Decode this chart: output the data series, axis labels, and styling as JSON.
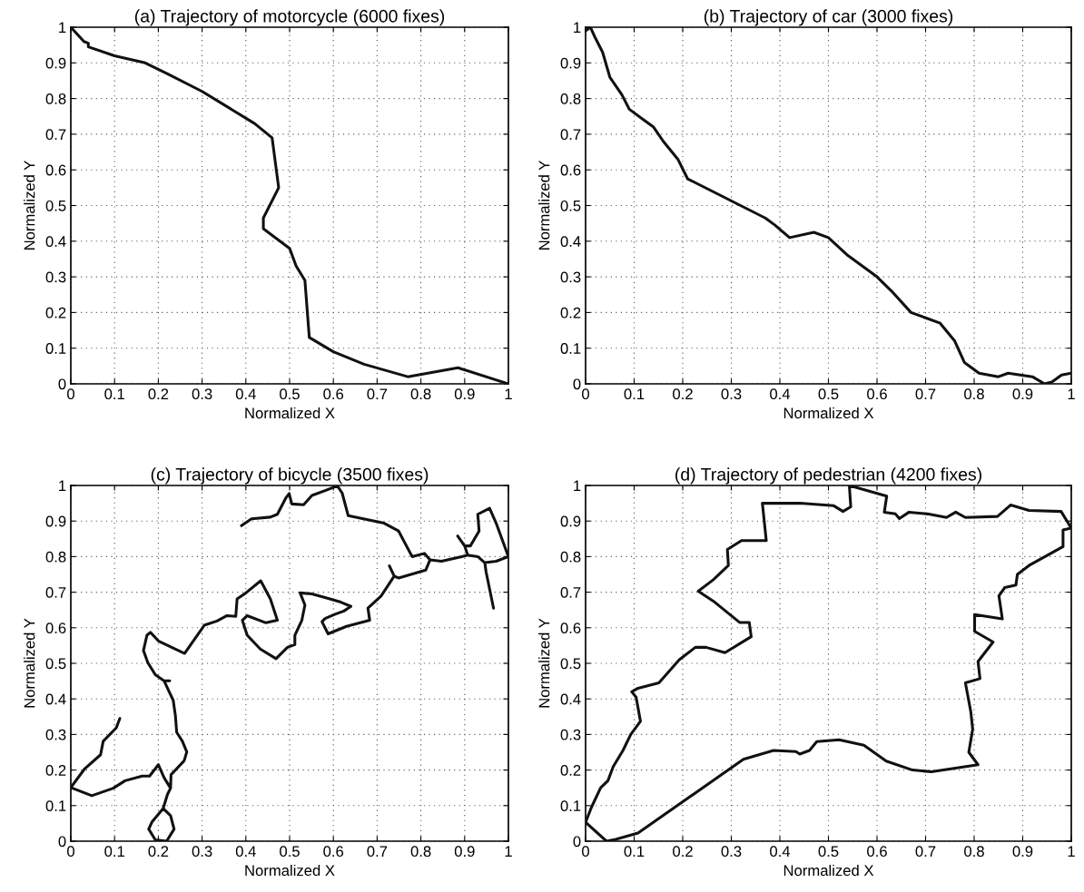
{
  "chart_data": [
    {
      "type": "line",
      "title": "(a) Trajectory of motorcycle (6000 fixes)",
      "xlabel": "Normalized X",
      "ylabel": "Normalized Y",
      "xlim": [
        0,
        1
      ],
      "ylim": [
        0,
        1
      ],
      "xticks": [
        0,
        0.1,
        0.2,
        0.3,
        0.4,
        0.5,
        0.6,
        0.7,
        0.8,
        0.9,
        1
      ],
      "yticks": [
        0,
        0.1,
        0.2,
        0.3,
        0.4,
        0.5,
        0.6,
        0.7,
        0.8,
        0.9,
        1
      ],
      "grid": true,
      "series": [
        {
          "color": "#111111",
          "x": [
            0,
            0.03,
            0.04,
            0.04,
            0.1,
            0.17,
            0.22,
            0.3,
            0.42,
            0.46,
            0.475,
            0.44,
            0.44,
            0.5,
            0.515,
            0.535,
            0.545,
            0.6,
            0.67,
            0.77,
            0.885,
            1
          ],
          "values": [
            1,
            0.96,
            0.955,
            0.945,
            0.92,
            0.9,
            0.87,
            0.82,
            0.73,
            0.69,
            0.55,
            0.465,
            0.435,
            0.38,
            0.33,
            0.29,
            0.13,
            0.09,
            0.055,
            0.02,
            0.045,
            0
          ]
        }
      ]
    },
    {
      "type": "line",
      "title": "(b) Trajectory of car (3000 fixes)",
      "xlabel": "Normalized X",
      "ylabel": "Normalized Y",
      "xlim": [
        0,
        1
      ],
      "ylim": [
        0,
        1
      ],
      "xticks": [
        0,
        0.1,
        0.2,
        0.3,
        0.4,
        0.5,
        0.6,
        0.7,
        0.8,
        0.9,
        1
      ],
      "yticks": [
        0,
        0.1,
        0.2,
        0.3,
        0.4,
        0.5,
        0.6,
        0.7,
        0.8,
        0.9,
        1
      ],
      "grid": true,
      "series": [
        {
          "color": "#111111",
          "x": [
            0,
            0.01,
            0.02,
            0.035,
            0.05,
            0.075,
            0.09,
            0.12,
            0.14,
            0.16,
            0.19,
            0.21,
            0.37,
            0.39,
            0.42,
            0.47,
            0.5,
            0.54,
            0.6,
            0.63,
            0.67,
            0.7,
            0.73,
            0.76,
            0.78,
            0.81,
            0.85,
            0.87,
            0.92,
            0.945,
            0.96,
            0.98,
            1
          ],
          "values": [
            0.99,
            1,
            0.97,
            0.93,
            0.86,
            0.81,
            0.77,
            0.74,
            0.72,
            0.68,
            0.63,
            0.575,
            0.465,
            0.445,
            0.41,
            0.425,
            0.41,
            0.36,
            0.3,
            0.26,
            0.2,
            0.185,
            0.17,
            0.12,
            0.06,
            0.03,
            0.02,
            0.03,
            0.02,
            0,
            0.005,
            0.025,
            0.03
          ]
        }
      ]
    },
    {
      "type": "line",
      "title": "(c) Trajectory of bicycle (3500 fixes)",
      "xlabel": "Normalized X",
      "ylabel": "Normalized Y",
      "xlim": [
        0,
        1
      ],
      "ylim": [
        0,
        1
      ],
      "xticks": [
        0,
        0.1,
        0.2,
        0.3,
        0.4,
        0.5,
        0.6,
        0.7,
        0.8,
        0.9,
        1
      ],
      "yticks": [
        0,
        0.1,
        0.2,
        0.3,
        0.4,
        0.5,
        0.6,
        0.7,
        0.8,
        0.9,
        1
      ],
      "grid": true,
      "series": [
        {
          "color": "#111111",
          "x": [
            0.112,
            0.104,
            0.074,
            0.068,
            0.032,
            0,
            0.048,
            0.097,
            0.124,
            0.163,
            0.18,
            0.2,
            0.213,
            0.228,
            0.221,
            0.211,
            0.186,
            0.178,
            0.193,
            0.219,
            0.236,
            0.228,
            0.211,
            null,
            0.228,
            0.229,
            0.259,
            0.265,
            0.255,
            0.242,
            0.239,
            0.234,
            0.213,
            0.226,
            null,
            0.213,
            0.193,
            0.176,
            0.166,
            0.174,
            0.182,
            0.201,
            0.26,
            0.305,
            0.334,
            0.357,
            0.377,
            0.38,
            0.4,
            0.434,
            0.456,
            0.472,
            0.446,
            0.403,
            0.392,
            0.403,
            0.433,
            0.469,
            0.495,
            0.512,
            0.512,
            0.528,
            0.535,
            0.524,
            0.551,
            0.581,
            0.617,
            0.64,
            0.624,
            0.604,
            0.581,
            0.574,
            0.588,
            0.63,
            0.683,
            0.679,
            0.709,
            0.739,
            0.728,
            null,
            0.739,
            0.749,
            0.811,
            0.821,
            0.808,
            0.78,
            0.749,
            0.716,
            0.634,
            0.62,
            0.609,
            0.584,
            0.551,
            0.532,
            0.505,
            0.499,
            0.492,
            0.472,
            0.456,
            0.413,
            0.39,
            null,
            0.821,
            0.847,
            0.893,
            0.907,
            0.93,
            0.946,
            0.972,
            1,
            null,
            0.907,
            0.9,
            0.884,
            null,
            0.9,
            0.913,
            0.933,
            0.93,
            0.957,
            0.972,
            1,
            null,
            0.946,
            0.949,
            0.966
          ],
          "values": [
            0.345,
            0.319,
            0.281,
            0.243,
            0.204,
            0.151,
            0.128,
            0.149,
            0.17,
            0.183,
            0.183,
            0.215,
            0.179,
            0.149,
            0.132,
            0.092,
            0.055,
            0.034,
            0.004,
            0,
            0.034,
            0.072,
            0.092,
            null,
            0.149,
            0.187,
            0.226,
            0.251,
            0.281,
            0.306,
            0.353,
            0.396,
            0.451,
            0.451,
            null,
            0.451,
            0.468,
            0.502,
            0.536,
            0.579,
            0.587,
            0.562,
            0.528,
            0.607,
            0.619,
            0.634,
            0.632,
            0.681,
            0.698,
            0.732,
            0.681,
            0.621,
            0.614,
            0.634,
            0.621,
            0.579,
            0.54,
            0.513,
            0.545,
            0.553,
            0.579,
            0.621,
            0.664,
            0.698,
            0.695,
            0.685,
            0.672,
            0.66,
            0.647,
            0.638,
            0.626,
            0.617,
            0.583,
            0.604,
            0.621,
            0.655,
            0.689,
            0.745,
            0.774,
            null,
            0.745,
            0.74,
            0.762,
            0.791,
            0.809,
            0.8,
            0.872,
            0.894,
            0.915,
            0.979,
            0.999,
            0.987,
            0.972,
            0.946,
            0.948,
            0.977,
            0.966,
            0.919,
            0.911,
            0.906,
            0.887,
            null,
            0.791,
            0.787,
            0.8,
            0.804,
            0.8,
            0.783,
            0.787,
            0.8,
            null,
            0.804,
            0.83,
            0.858,
            null,
            0.83,
            0.83,
            0.872,
            0.919,
            0.936,
            0.894,
            0.8,
            null,
            0.783,
            0.757,
            0.655
          ]
        }
      ]
    },
    {
      "type": "line",
      "title": "(d) Trajectory of pedestrian (4200 fixes)",
      "xlabel": "Normalized X",
      "ylabel": "Normalized Y",
      "xlim": [
        0,
        1
      ],
      "ylim": [
        0,
        1
      ],
      "xticks": [
        0,
        0.1,
        0.2,
        0.3,
        0.4,
        0.5,
        0.6,
        0.7,
        0.8,
        0.9,
        1
      ],
      "yticks": [
        0,
        0.1,
        0.2,
        0.3,
        0.4,
        0.5,
        0.6,
        0.7,
        0.8,
        0.9,
        1
      ],
      "grid": true,
      "series": [
        {
          "color": "#111111",
          "x": [
            0,
            0.012,
            0.031,
            0.046,
            0.057,
            0.077,
            0.093,
            0.113,
            0.104,
            0.095,
            0.108,
            0.151,
            0.193,
            0.226,
            0.248,
            0.287,
            0.341,
            0.337,
            0.317,
            0.263,
            0.232,
            0.263,
            0.294,
            0.292,
            0.321,
            0.372,
            0.364,
            0.441,
            0.511,
            0.53,
            0.546,
            0.543,
            0.62,
            0.615,
            0.638,
            0.646,
            0.666,
            0.704,
            0.743,
            0.762,
            0.782,
            0.848,
            0.875,
            0.913,
            0.979,
            1,
            0.983,
            0.983,
            0.913,
            0.889,
            0.886,
            0.863,
            0.851,
            0.858,
            0.801,
            0.801,
            0.839,
            0.808,
            0.812,
            0.782,
            0.793,
            0.797,
            0.789,
            0.808,
            0.712,
            0.673,
            0.619,
            0.573,
            0.522,
            0.476,
            0.461,
            0.441,
            0.433,
            0.387,
            0.325,
            0.108,
            0.062,
            0.043
          ],
          "values": [
            0.053,
            0.095,
            0.15,
            0.17,
            0.21,
            0.255,
            0.3,
            0.337,
            0.405,
            0.42,
            0.43,
            0.445,
            0.51,
            0.545,
            0.545,
            0.53,
            0.575,
            0.615,
            0.615,
            0.675,
            0.703,
            0.735,
            0.775,
            0.82,
            0.845,
            0.845,
            0.95,
            0.95,
            0.943,
            0.927,
            0.94,
            1,
            0.97,
            0.925,
            0.92,
            0.907,
            0.925,
            0.92,
            0.91,
            0.925,
            0.91,
            0.913,
            0.945,
            0.93,
            0.927,
            0.88,
            0.875,
            0.828,
            0.775,
            0.75,
            0.72,
            0.713,
            0.69,
            0.625,
            0.637,
            0.59,
            0.56,
            0.505,
            0.457,
            0.445,
            0.365,
            0.315,
            0.25,
            0.215,
            0.195,
            0.2,
            0.225,
            0.27,
            0.285,
            0.28,
            0.255,
            0.245,
            0.252,
            0.255,
            0.23,
            0.023,
            0.005,
            0
          ]
        },
        {
          "color": "#111111",
          "x": [
            0.043,
            0
          ],
          "values": [
            0,
            0.053
          ]
        }
      ]
    }
  ]
}
